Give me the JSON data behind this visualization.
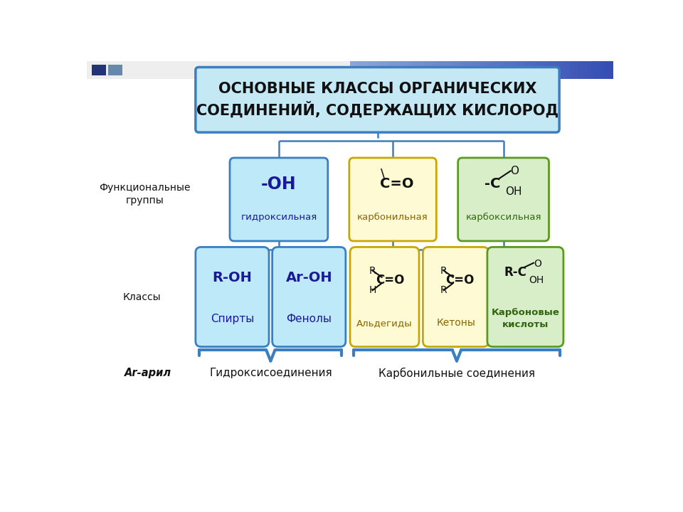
{
  "title": "ОСНОВНЫЕ КЛАССЫ ОРГАНИЧЕСКИХ\nСОЕДИНЕНИЙ, СОДЕРЖАЩИХ КИСЛОРОД",
  "bg_color": "#FFFFFF",
  "func_groups_label": "Функциональные\nгруппы",
  "classes_label": "Классы",
  "ar_label": "Ar-арил",
  "line_color": "#3A7FC1",
  "text_color_blue": "#1A1A99",
  "text_color_dark": "#111111",
  "title_box_color": "#C5E8F5",
  "title_box_edge": "#3A7FC1",
  "fg1_color": "#BDE9F8",
  "fg1_edge": "#3A7FC1",
  "fg2_color": "#FEFAD4",
  "fg2_edge": "#C8A800",
  "fg3_color": "#D8EEC8",
  "fg3_edge": "#5A9A20",
  "cb_blue_color": "#BDE9F8",
  "cb_blue_edge": "#3A7FC1",
  "cb_yellow_color": "#FEFAD4",
  "cb_yellow_edge": "#C8A800",
  "cb_green_color": "#D8EEC8",
  "cb_green_edge": "#5A9A20"
}
